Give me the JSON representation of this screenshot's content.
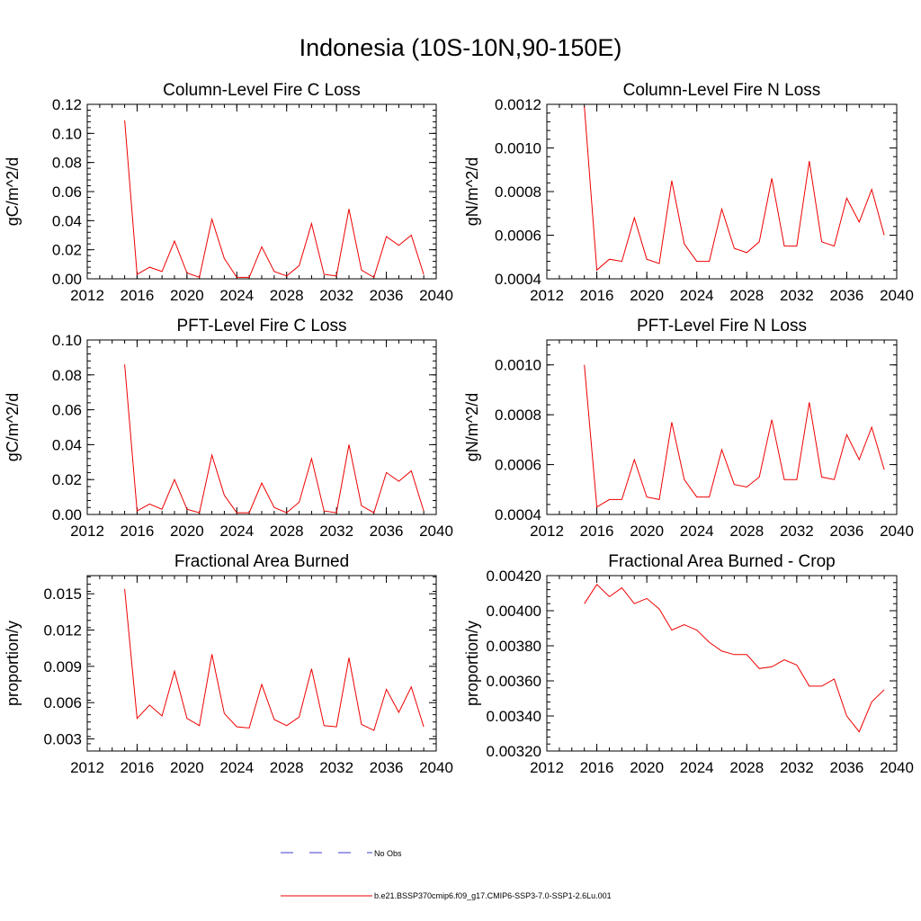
{
  "figure": {
    "title": "Indonesia (10S-10N,90-150E)",
    "line_color": "#ee0000",
    "obs_color": "#3b3bd0"
  },
  "legend": {
    "obs_label": "No Obs",
    "model_label": "b.e21.BSSP370cmip6.f09_g17.CMIP6-SSP3-7.0-SSP1-2.6Lu.001"
  },
  "chart_data": [
    {
      "type": "line",
      "title": "Column-Level Fire C Loss",
      "ylabel": "gC/m^2/d",
      "xlim": [
        2012,
        2040
      ],
      "ylim": [
        0,
        0.12
      ],
      "xticks": [
        "2012",
        "2016",
        "2020",
        "2024",
        "2028",
        "2032",
        "2036",
        "2040"
      ],
      "yticks": [
        "0.00",
        "0.02",
        "0.04",
        "0.06",
        "0.08",
        "0.10",
        "0.12"
      ],
      "x": [
        2015,
        2016,
        2017,
        2018,
        2019,
        2020,
        2021,
        2022,
        2023,
        2024,
        2025,
        2026,
        2027,
        2028,
        2029,
        2030,
        2031,
        2032,
        2033,
        2034,
        2035,
        2036,
        2037,
        2038,
        2039
      ],
      "series": [
        {
          "name": "b.e21.BSSP370cmip6.f09_g17.CMIP6-SSP3-7.0-SSP1-2.6Lu.001",
          "values": [
            0.109,
            0.003,
            0.008,
            0.005,
            0.026,
            0.004,
            0.001,
            0.041,
            0.014,
            0.001,
            0.001,
            0.022,
            0.005,
            0.002,
            0.009,
            0.038,
            0.003,
            0.002,
            0.048,
            0.006,
            0.001,
            0.029,
            0.023,
            0.03,
            0.003
          ]
        }
      ]
    },
    {
      "type": "line",
      "title": "Column-Level Fire N Loss",
      "ylabel": "gN/m^2/d",
      "xlim": [
        2012,
        2040
      ],
      "ylim": [
        0.0004,
        0.0012
      ],
      "xticks": [
        "2012",
        "2016",
        "2020",
        "2024",
        "2028",
        "2032",
        "2036",
        "2040"
      ],
      "yticks": [
        "0.0004",
        "0.0006",
        "0.0008",
        "0.0010",
        "0.0012"
      ],
      "x": [
        2015,
        2016,
        2017,
        2018,
        2019,
        2020,
        2021,
        2022,
        2023,
        2024,
        2025,
        2026,
        2027,
        2028,
        2029,
        2030,
        2031,
        2032,
        2033,
        2034,
        2035,
        2036,
        2037,
        2038,
        2039
      ],
      "series": [
        {
          "name": "b.e21.BSSP370cmip6.f09_g17.CMIP6-SSP3-7.0-SSP1-2.6Lu.001",
          "values": [
            0.00119,
            0.00044,
            0.00049,
            0.00048,
            0.00068,
            0.00049,
            0.00047,
            0.00085,
            0.00056,
            0.00048,
            0.00048,
            0.00072,
            0.00054,
            0.00052,
            0.00057,
            0.00086,
            0.00055,
            0.00055,
            0.00094,
            0.00057,
            0.00055,
            0.00077,
            0.00066,
            0.00081,
            0.0006
          ]
        }
      ]
    },
    {
      "type": "line",
      "title": "PFT-Level Fire C Loss",
      "ylabel": "gC/m^2/d",
      "xlim": [
        2012,
        2040
      ],
      "ylim": [
        0,
        0.1
      ],
      "xticks": [
        "2012",
        "2016",
        "2020",
        "2024",
        "2028",
        "2032",
        "2036",
        "2040"
      ],
      "yticks": [
        "0.00",
        "0.02",
        "0.04",
        "0.06",
        "0.08",
        "0.10"
      ],
      "x": [
        2015,
        2016,
        2017,
        2018,
        2019,
        2020,
        2021,
        2022,
        2023,
        2024,
        2025,
        2026,
        2027,
        2028,
        2029,
        2030,
        2031,
        2032,
        2033,
        2034,
        2035,
        2036,
        2037,
        2038,
        2039
      ],
      "series": [
        {
          "name": "b.e21.BSSP370cmip6.f09_g17.CMIP6-SSP3-7.0-SSP1-2.6Lu.001",
          "values": [
            0.086,
            0.002,
            0.006,
            0.003,
            0.02,
            0.003,
            0.001,
            0.034,
            0.011,
            0.001,
            0.001,
            0.018,
            0.004,
            0.001,
            0.007,
            0.032,
            0.002,
            0.001,
            0.04,
            0.005,
            0.001,
            0.024,
            0.019,
            0.025,
            0.002
          ]
        }
      ]
    },
    {
      "type": "line",
      "title": "PFT-Level Fire N Loss",
      "ylabel": "gN/m^2/d",
      "xlim": [
        2012,
        2040
      ],
      "ylim": [
        0.0004,
        0.0011
      ],
      "xticks": [
        "2012",
        "2016",
        "2020",
        "2024",
        "2028",
        "2032",
        "2036",
        "2040"
      ],
      "yticks": [
        "0.0004",
        "0.0006",
        "0.0008",
        "0.0010"
      ],
      "x": [
        2015,
        2016,
        2017,
        2018,
        2019,
        2020,
        2021,
        2022,
        2023,
        2024,
        2025,
        2026,
        2027,
        2028,
        2029,
        2030,
        2031,
        2032,
        2033,
        2034,
        2035,
        2036,
        2037,
        2038,
        2039
      ],
      "series": [
        {
          "name": "b.e21.BSSP370cmip6.f09_g17.CMIP6-SSP3-7.0-SSP1-2.6Lu.001",
          "values": [
            0.001,
            0.00043,
            0.00046,
            0.00046,
            0.00062,
            0.00047,
            0.00046,
            0.00077,
            0.00054,
            0.00047,
            0.00047,
            0.00066,
            0.00052,
            0.00051,
            0.00055,
            0.00078,
            0.00054,
            0.00054,
            0.00085,
            0.00055,
            0.00054,
            0.00072,
            0.00062,
            0.00075,
            0.00058
          ]
        }
      ]
    },
    {
      "type": "line",
      "title": "Fractional Area Burned",
      "ylabel": "proportion/y",
      "xlim": [
        2012,
        2040
      ],
      "ylim": [
        0.002,
        0.0165
      ],
      "xticks": [
        "2012",
        "2016",
        "2020",
        "2024",
        "2028",
        "2032",
        "2036",
        "2040"
      ],
      "yticks": [
        "0.003",
        "0.006",
        "0.009",
        "0.012",
        "0.015"
      ],
      "ytick_values": [
        0.003,
        0.006,
        0.009,
        0.012,
        0.015
      ],
      "x": [
        2015,
        2016,
        2017,
        2018,
        2019,
        2020,
        2021,
        2022,
        2023,
        2024,
        2025,
        2026,
        2027,
        2028,
        2029,
        2030,
        2031,
        2032,
        2033,
        2034,
        2035,
        2036,
        2037,
        2038,
        2039
      ],
      "series": [
        {
          "name": "b.e21.BSSP370cmip6.f09_g17.CMIP6-SSP3-7.0-SSP1-2.6Lu.001",
          "values": [
            0.0154,
            0.0047,
            0.0058,
            0.0049,
            0.0086,
            0.0047,
            0.0041,
            0.01,
            0.0051,
            0.004,
            0.0039,
            0.0075,
            0.0046,
            0.0041,
            0.0048,
            0.0088,
            0.0041,
            0.004,
            0.0097,
            0.0042,
            0.0037,
            0.0071,
            0.0052,
            0.0073,
            0.004
          ]
        }
      ]
    },
    {
      "type": "line",
      "title": "Fractional Area Burned - Crop",
      "ylabel": "proportion/y",
      "xlim": [
        2012,
        2040
      ],
      "ylim": [
        0.0032,
        0.0042
      ],
      "xticks": [
        "2012",
        "2016",
        "2020",
        "2024",
        "2028",
        "2032",
        "2036",
        "2040"
      ],
      "yticks": [
        "0.00320",
        "0.00340",
        "0.00360",
        "0.00380",
        "0.00400",
        "0.00420"
      ],
      "x": [
        2015,
        2016,
        2017,
        2018,
        2019,
        2020,
        2021,
        2022,
        2023,
        2024,
        2025,
        2026,
        2027,
        2028,
        2029,
        2030,
        2031,
        2032,
        2033,
        2034,
        2035,
        2036,
        2037,
        2038,
        2039
      ],
      "series": [
        {
          "name": "b.e21.BSSP370cmip6.f09_g17.CMIP6-SSP3-7.0-SSP1-2.6Lu.001",
          "values": [
            0.00404,
            0.00415,
            0.00408,
            0.00413,
            0.00404,
            0.00407,
            0.00401,
            0.00389,
            0.00392,
            0.00389,
            0.00382,
            0.00377,
            0.00375,
            0.00375,
            0.00367,
            0.00368,
            0.00372,
            0.00369,
            0.00357,
            0.00357,
            0.00361,
            0.0034,
            0.00331,
            0.00348,
            0.00355
          ]
        }
      ]
    }
  ]
}
